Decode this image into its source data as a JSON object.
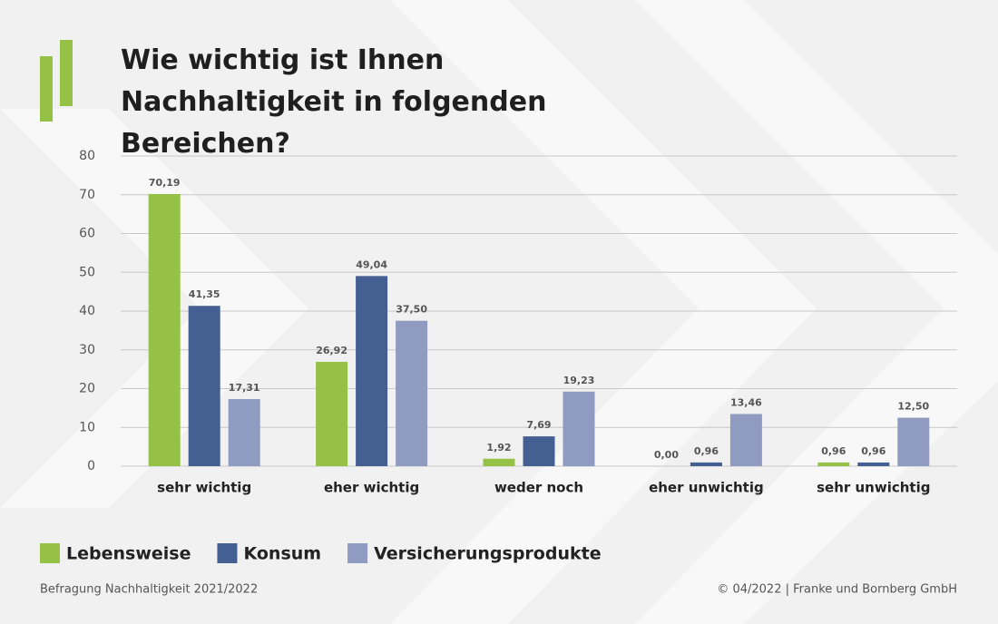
{
  "chart_data": {
    "type": "bar",
    "title": "Wie wichtig ist Ihnen Nachhaltigkeit in folgenden Bereichen?",
    "categories": [
      "sehr wichtig",
      "eher wichtig",
      "weder noch",
      "eher unwichtig",
      "sehr unwichtig"
    ],
    "series": [
      {
        "name": "Lebensweise",
        "color": "#96c147",
        "values": [
          70.19,
          26.92,
          1.92,
          0.0,
          0.96
        ],
        "value_labels": [
          "70,19",
          "26,92",
          "1,92",
          "0,00",
          "0,96"
        ]
      },
      {
        "name": "Konsum",
        "color": "#445f91",
        "values": [
          41.35,
          49.04,
          7.69,
          0.96,
          0.96
        ],
        "value_labels": [
          "41,35",
          "49,04",
          "7,69",
          "0,96",
          "0,96"
        ]
      },
      {
        "name": "Versicherungsprodukte",
        "color": "#8f9bc0",
        "values": [
          17.31,
          37.5,
          19.23,
          13.46,
          12.5
        ],
        "value_labels": [
          "17,31",
          "37,50",
          "19,23",
          "13,46",
          "12,50"
        ]
      }
    ],
    "ylim": [
      0,
      80
    ],
    "yticks": [
      0,
      10,
      20,
      30,
      40,
      50,
      60,
      70,
      80
    ],
    "grid": true,
    "source": "Befragung Nachhaltigkeit 2021/2022",
    "copyright": "© 04/2022 | Franke und Bornberg GmbH"
  }
}
